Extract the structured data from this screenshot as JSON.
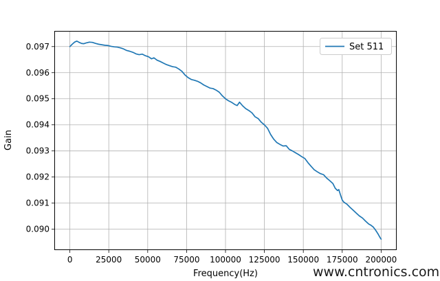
{
  "figure": {
    "watermark": "www.cntronics.com",
    "watermark_color": "#a6dca6",
    "background_color": "#ffffff"
  },
  "chart_data": {
    "type": "line",
    "title": "",
    "xlabel": "Frequency(Hz)",
    "ylabel": "Gain",
    "grid": true,
    "grid_color": "#b0b0b0",
    "spine_color": "#000000",
    "xlim": [
      -10000,
      210000
    ],
    "ylim": [
      0.0892,
      0.0976
    ],
    "x_ticks": [
      0,
      25000,
      50000,
      75000,
      100000,
      125000,
      150000,
      175000,
      200000
    ],
    "x_tick_labels": [
      "0",
      "25000",
      "50000",
      "75000",
      "100000",
      "125000",
      "150000",
      "175000",
      "200000"
    ],
    "y_ticks": [
      0.09,
      0.091,
      0.092,
      0.093,
      0.094,
      0.095,
      0.096,
      0.097
    ],
    "y_tick_labels": [
      "0.090",
      "0.091",
      "0.092",
      "0.093",
      "0.094",
      "0.095",
      "0.096",
      "0.097"
    ],
    "legend": {
      "position": "upper right",
      "entries": [
        {
          "label": "Set 511",
          "color": "#1f77b4"
        }
      ]
    },
    "series": [
      {
        "name": "Set 511",
        "color": "#1f77b4",
        "x": [
          0,
          1500,
          3000,
          4500,
          6000,
          7500,
          9000,
          10500,
          12500,
          14500,
          16500,
          18500,
          20500,
          22500,
          24500,
          26500,
          28500,
          30500,
          32500,
          34500,
          36500,
          38500,
          40500,
          42500,
          44500,
          46500,
          48500,
          50500,
          52500,
          54000,
          56000,
          58000,
          60000,
          62000,
          64000,
          66000,
          68000,
          70000,
          72000,
          74000,
          76000,
          78000,
          80000,
          82000,
          84000,
          86000,
          88000,
          90000,
          92000,
          94000,
          96000,
          98000,
          100000,
          102000,
          104000,
          106000,
          107500,
          109000,
          111000,
          113000,
          115000,
          117000,
          119000,
          121000,
          123000,
          125000,
          127000,
          129000,
          131000,
          133000,
          135000,
          137000,
          139000,
          141000,
          143000,
          145000,
          147000,
          149000,
          151000,
          153000,
          155000,
          157000,
          159000,
          161000,
          163000,
          165000,
          167000,
          169000,
          170500,
          172000,
          172800,
          173800,
          175000,
          176000,
          178000,
          180000,
          182000,
          184000,
          186000,
          188000,
          190000,
          192000,
          193500,
          195000,
          196500,
          198000,
          199200,
          200000
        ],
        "y": [
          0.097,
          0.09709,
          0.09717,
          0.09721,
          0.09716,
          0.09712,
          0.09711,
          0.09714,
          0.09717,
          0.09716,
          0.09712,
          0.09709,
          0.09707,
          0.09705,
          0.09704,
          0.09701,
          0.09699,
          0.09698,
          0.09695,
          0.09691,
          0.09685,
          0.09682,
          0.09678,
          0.09672,
          0.09669,
          0.09671,
          0.09665,
          0.09661,
          0.09653,
          0.09657,
          0.09648,
          0.09643,
          0.09637,
          0.09631,
          0.09627,
          0.09623,
          0.09621,
          0.09614,
          0.09605,
          0.09591,
          0.09581,
          0.09574,
          0.09571,
          0.09567,
          0.09561,
          0.09553,
          0.09547,
          0.09541,
          0.09539,
          0.09533,
          0.09525,
          0.09511,
          0.095,
          0.09492,
          0.09486,
          0.09478,
          0.09474,
          0.09487,
          0.09473,
          0.09462,
          0.09455,
          0.09446,
          0.09431,
          0.09424,
          0.0941,
          0.094,
          0.09387,
          0.09363,
          0.09345,
          0.09332,
          0.09325,
          0.09319,
          0.0932,
          0.09306,
          0.093,
          0.09293,
          0.09286,
          0.09278,
          0.09271,
          0.09255,
          0.09241,
          0.09228,
          0.0922,
          0.09213,
          0.09209,
          0.09196,
          0.09186,
          0.09175,
          0.09157,
          0.09148,
          0.09152,
          0.09133,
          0.09112,
          0.09104,
          0.09096,
          0.09084,
          0.09073,
          0.09062,
          0.09051,
          0.09043,
          0.09031,
          0.0902,
          0.09015,
          0.09008,
          0.08996,
          0.08982,
          0.08969,
          0.08962
        ]
      }
    ]
  }
}
